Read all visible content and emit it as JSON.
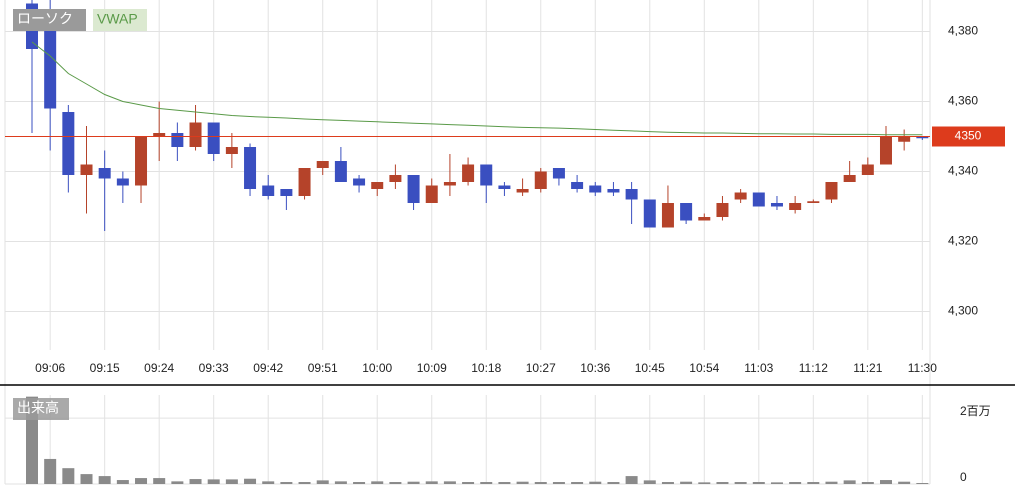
{
  "chart_data": [
    {
      "type": "candlestick",
      "categories": [
        null,
        "09:06",
        null,
        null,
        "09:15",
        null,
        null,
        "09:24",
        null,
        null,
        "09:33",
        null,
        null,
        "09:42",
        null,
        null,
        "09:51",
        null,
        null,
        "10:00",
        null,
        null,
        "10:09",
        null,
        null,
        "10:18",
        null,
        null,
        "10:27",
        null,
        null,
        "10:36",
        null,
        null,
        "10:45",
        null,
        null,
        "10:54",
        null,
        null,
        "11:03",
        null,
        null,
        "11:12",
        null,
        null,
        "11:21",
        null,
        null,
        "11:30"
      ],
      "series": [
        {
          "name": "ローソク",
          "up_color": "#b5432a",
          "down_color": "#3a4fc0",
          "open": [
            4388,
            4386,
            4357,
            4339,
            4341,
            4338,
            4336,
            4350,
            4351,
            4347,
            4354,
            4345,
            4347,
            4336,
            4335,
            4333,
            4341,
            4343,
            4338,
            4335,
            4337,
            4339,
            4331,
            4336,
            4337,
            4342,
            4336,
            4334,
            4335,
            4341,
            4337,
            4336,
            4335,
            4335,
            4332,
            4324,
            4331,
            4326,
            4327,
            4332,
            4334,
            4331,
            4329,
            4331,
            4332,
            4337,
            4339,
            4342,
            4348.5,
            4350
          ],
          "high": [
            4389,
            4389,
            4359,
            4353,
            4346,
            4340,
            4350,
            4360,
            4354,
            4359,
            4354,
            4351,
            4348,
            4339,
            4335,
            4341,
            4343,
            4347,
            4339,
            4337,
            4342,
            4339,
            4338,
            4345,
            4344,
            4342,
            4337,
            4338,
            4341,
            4341,
            4339,
            4337,
            4337,
            4337,
            4332,
            4336,
            4331,
            4328,
            4333,
            4335,
            4334,
            4333,
            4333,
            4332,
            4337,
            4343,
            4344,
            4353,
            4352,
            4350
          ],
          "low": [
            4351,
            4346,
            4334,
            4328,
            4323,
            4331,
            4331,
            4343,
            4343,
            4346,
            4343,
            4341,
            4333,
            4332,
            4329,
            4332,
            4339,
            4337,
            4334,
            4333,
            4335,
            4329,
            4331,
            4333,
            4336,
            4331,
            4333,
            4333,
            4334,
            4336,
            4334,
            4333,
            4333,
            4325,
            4324,
            4324,
            4325,
            4326,
            4326,
            4331,
            4330,
            4329,
            4328,
            4331,
            4331,
            4337,
            4339,
            4342,
            4346,
            4349
          ],
          "close": [
            4375,
            4358,
            4339,
            4342,
            4338,
            4336,
            4350,
            4351,
            4347,
            4354,
            4345,
            4347,
            4335,
            4333,
            4333,
            4341,
            4343,
            4337,
            4336,
            4337,
            4339,
            4331,
            4336,
            4337,
            4342,
            4336,
            4335,
            4335,
            4340,
            4338,
            4335,
            4334,
            4334,
            4332,
            4324,
            4331,
            4326,
            4327,
            4331,
            4334,
            4330,
            4330,
            4331,
            4331.5,
            4337,
            4339,
            4342,
            4350,
            4350,
            4349.5
          ]
        },
        {
          "name": "VWAP",
          "color": "#5a9a48",
          "legend_bg": "#dbe9d0",
          "values": [
            4377,
            4373,
            4368,
            4365,
            4362,
            4360,
            4359,
            4358,
            4357.5,
            4357,
            4356.5,
            4356,
            4355.7,
            4355.5,
            4355.3,
            4355,
            4354.8,
            4354.6,
            4354.4,
            4354.2,
            4354,
            4353.8,
            4353.6,
            4353.4,
            4353.2,
            4353,
            4352.8,
            4352.6,
            4352.5,
            4352.4,
            4352.2,
            4352,
            4351.8,
            4351.6,
            4351.4,
            4351.2,
            4351.1,
            4351,
            4351,
            4350.9,
            4350.8,
            4350.8,
            4350.7,
            4350.7,
            4350.6,
            4350.6,
            4350.6,
            4350.5,
            4350.5,
            4350.5
          ]
        }
      ],
      "ylim": [
        4289,
        4389
      ],
      "yticks": [
        {
          "value": 4300,
          "label": "4,300"
        },
        {
          "value": 4320,
          "label": "4,320"
        },
        {
          "value": 4340,
          "label": "4,340"
        },
        {
          "value": 4360,
          "label": "4,360"
        },
        {
          "value": 4380,
          "label": "4,380"
        }
      ],
      "last_price": 4350,
      "last_price_color": "#dd3b1c",
      "grid": true
    },
    {
      "type": "bar",
      "title": "出来高",
      "color": "#8a8a8a",
      "values": [
        2650000,
        760000,
        480000,
        300000,
        240000,
        120000,
        180000,
        180000,
        80000,
        150000,
        140000,
        140000,
        160000,
        80000,
        60000,
        60000,
        110000,
        80000,
        60000,
        80000,
        60000,
        70000,
        80000,
        80000,
        60000,
        60000,
        60000,
        70000,
        60000,
        60000,
        60000,
        70000,
        60000,
        240000,
        110000,
        60000,
        70000,
        50000,
        60000,
        60000,
        60000,
        50000,
        60000,
        60000,
        70000,
        110000,
        60000,
        120000,
        70000,
        30000
      ],
      "ylim": [
        0,
        2700000
      ],
      "yticks": [
        0,
        {
          "value": 2000000,
          "label": "2百万"
        }
      ],
      "grid": true
    }
  ]
}
